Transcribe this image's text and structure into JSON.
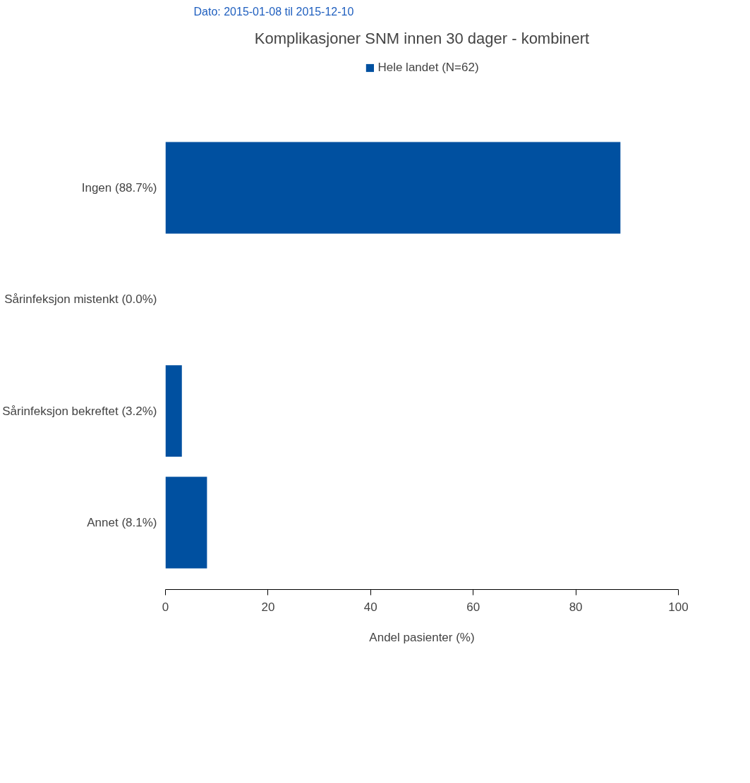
{
  "chart_data": {
    "type": "bar",
    "orientation": "horizontal",
    "title": "Komplikasjoner SNM innen 30 dager - kombinert",
    "subtitle": "Dato: 2015-01-08 til 2015-12-10",
    "xlabel": "Andel pasienter (%)",
    "categories": [
      "Ingen (88.7%)",
      "Sårinfeksjon mistenkt (0.0%)",
      "Sårinfeksjon bekreftet (3.2%)",
      "Annet (8.1%)"
    ],
    "series": [
      {
        "name": "Hele landet (N=62)",
        "color": "#0050a0",
        "values": [
          88.7,
          0.0,
          3.2,
          8.1
        ]
      }
    ],
    "xlim": [
      0,
      100
    ],
    "xticks": [
      0,
      20,
      40,
      60,
      80,
      100
    ],
    "grid": false,
    "legend": "top"
  }
}
